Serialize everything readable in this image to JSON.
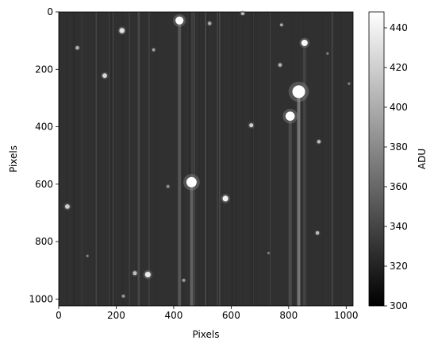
{
  "chart_data": {
    "type": "heatmap",
    "title": "",
    "xlabel": "Pixels",
    "ylabel": "Pixels",
    "xlim": [
      0,
      1024
    ],
    "ylim": [
      1024,
      0
    ],
    "x_ticks": [
      "0",
      "200",
      "400",
      "600",
      "800",
      "1000"
    ],
    "y_ticks": [
      "0",
      "200",
      "400",
      "600",
      "800",
      "1000"
    ],
    "x_tick_values": [
      0,
      200,
      400,
      600,
      800,
      1000
    ],
    "y_tick_values": [
      0,
      200,
      400,
      600,
      800,
      1000
    ],
    "colormap": "gray",
    "background_level": 328,
    "colorbar": {
      "label": "ADU",
      "range": [
        300,
        448
      ],
      "ticks": [
        "300",
        "320",
        "340",
        "360",
        "380",
        "400",
        "420",
        "440"
      ],
      "tick_values": [
        300,
        320,
        340,
        360,
        380,
        400,
        420,
        440
      ]
    },
    "sources": [
      {
        "x": 420,
        "y": 30,
        "peak": 448,
        "radius": 14
      },
      {
        "x": 855,
        "y": 108,
        "peak": 445,
        "radius": 11
      },
      {
        "x": 835,
        "y": 278,
        "peak": 448,
        "radius": 22
      },
      {
        "x": 805,
        "y": 363,
        "peak": 448,
        "radius": 16
      },
      {
        "x": 462,
        "y": 593,
        "peak": 448,
        "radius": 18
      },
      {
        "x": 580,
        "y": 650,
        "peak": 440,
        "radius": 10
      },
      {
        "x": 220,
        "y": 65,
        "peak": 430,
        "radius": 9
      },
      {
        "x": 160,
        "y": 222,
        "peak": 425,
        "radius": 8
      },
      {
        "x": 670,
        "y": 395,
        "peak": 420,
        "radius": 7
      },
      {
        "x": 905,
        "y": 452,
        "peak": 410,
        "radius": 6
      },
      {
        "x": 30,
        "y": 678,
        "peak": 420,
        "radius": 8
      },
      {
        "x": 310,
        "y": 915,
        "peak": 435,
        "radius": 10
      },
      {
        "x": 265,
        "y": 910,
        "peak": 410,
        "radius": 7
      },
      {
        "x": 900,
        "y": 770,
        "peak": 410,
        "radius": 6
      },
      {
        "x": 65,
        "y": 125,
        "peak": 405,
        "radius": 6
      },
      {
        "x": 770,
        "y": 185,
        "peak": 405,
        "radius": 6
      },
      {
        "x": 640,
        "y": 5,
        "peak": 410,
        "radius": 6
      },
      {
        "x": 525,
        "y": 40,
        "peak": 400,
        "radius": 6
      },
      {
        "x": 775,
        "y": 45,
        "peak": 400,
        "radius": 5
      },
      {
        "x": 330,
        "y": 132,
        "peak": 395,
        "radius": 5
      },
      {
        "x": 435,
        "y": 935,
        "peak": 395,
        "radius": 5
      },
      {
        "x": 225,
        "y": 990,
        "peak": 390,
        "radius": 5
      },
      {
        "x": 380,
        "y": 608,
        "peak": 385,
        "radius": 5
      },
      {
        "x": 100,
        "y": 850,
        "peak": 380,
        "radius": 4
      },
      {
        "x": 730,
        "y": 840,
        "peak": 380,
        "radius": 4
      },
      {
        "x": 1010,
        "y": 250,
        "peak": 380,
        "radius": 4
      },
      {
        "x": 935,
        "y": 145,
        "peak": 378,
        "radius": 4
      }
    ],
    "vertical_streaks": [
      {
        "x": 420,
        "y_from": 30,
        "y_to": 1024,
        "level": 352
      },
      {
        "x": 462,
        "y_from": 593,
        "y_to": 1024,
        "level": 358
      },
      {
        "x": 835,
        "y_from": 278,
        "y_to": 1024,
        "level": 372
      },
      {
        "x": 805,
        "y_from": 363,
        "y_to": 1024,
        "level": 345
      },
      {
        "x": 855,
        "y_from": 108,
        "y_to": 1024,
        "level": 340
      }
    ]
  }
}
